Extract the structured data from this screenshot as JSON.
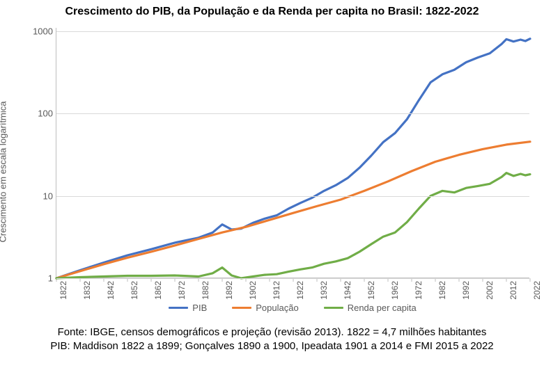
{
  "title": "Crescimento do PIB, da População e da Renda per capita no Brasil: 1822-2022",
  "ylabel": "Crescimento em escala logarítmica",
  "footer_line1": "Fonte: IBGE, censos demográficos e projeção (revisão 2013). 1822 = 4,7 milhões habitantes",
  "footer_line2": "PIB: Maddison 1822 a 1899; Gonçalves 1890 a 1900, Ipeadata 1901 a 2014 e FMI 2015 a 2022",
  "chart": {
    "type": "line",
    "xlim": [
      1822,
      2022
    ],
    "ylim": [
      1,
      1100
    ],
    "yscale": "log",
    "yticks": [
      1,
      10,
      100,
      1000
    ],
    "xticks": [
      1822,
      1832,
      1842,
      1852,
      1862,
      1872,
      1882,
      1892,
      1902,
      1912,
      1922,
      1932,
      1942,
      1952,
      1962,
      1972,
      1982,
      1992,
      2002,
      2012,
      2022
    ],
    "background_color": "#ffffff",
    "grid_color": "#d9d9d9",
    "axis_color": "#bfbfbf",
    "tick_label_color": "#595959",
    "tick_fontsize": 13,
    "title_fontsize": 16,
    "line_width": 3.2,
    "legend_position": "bottom",
    "series": [
      {
        "name": "PIB",
        "color": "#4472c4",
        "years": [
          1822,
          1832,
          1842,
          1852,
          1862,
          1872,
          1882,
          1888,
          1892,
          1896,
          1900,
          1905,
          1910,
          1915,
          1920,
          1925,
          1930,
          1935,
          1940,
          1945,
          1950,
          1955,
          1960,
          1965,
          1970,
          1975,
          1980,
          1985,
          1990,
          1995,
          2000,
          2005,
          2010,
          2012,
          2015,
          2018,
          2020,
          2022
        ],
        "values": [
          1.0,
          1.25,
          1.55,
          1.9,
          2.25,
          2.7,
          3.1,
          3.6,
          4.5,
          3.9,
          4.0,
          4.7,
          5.3,
          5.8,
          7.0,
          8.2,
          9.5,
          11.5,
          13.5,
          16.5,
          22,
          31,
          45,
          58,
          85,
          145,
          240,
          300,
          340,
          420,
          480,
          540,
          700,
          800,
          750,
          790,
          760,
          810
        ]
      },
      {
        "name": "População",
        "color": "#ed7d31",
        "years": [
          1822,
          1832,
          1842,
          1852,
          1862,
          1872,
          1882,
          1892,
          1902,
          1912,
          1922,
          1932,
          1942,
          1952,
          1962,
          1972,
          1982,
          1992,
          2002,
          2012,
          2022
        ],
        "values": [
          1.0,
          1.22,
          1.48,
          1.78,
          2.1,
          2.5,
          3.0,
          3.6,
          4.2,
          5.1,
          6.2,
          7.5,
          9.0,
          11.5,
          15.0,
          20.0,
          26.0,
          31.5,
          37.0,
          42.0,
          45.5
        ]
      },
      {
        "name": "Renda per capita",
        "color": "#70ad47",
        "years": [
          1822,
          1832,
          1842,
          1852,
          1862,
          1872,
          1882,
          1888,
          1892,
          1896,
          1900,
          1905,
          1910,
          1915,
          1920,
          1925,
          1930,
          1935,
          1940,
          1945,
          1950,
          1955,
          1960,
          1965,
          1970,
          1975,
          1980,
          1985,
          1990,
          1995,
          2000,
          2005,
          2010,
          2012,
          2015,
          2018,
          2020,
          2022
        ],
        "values": [
          1.0,
          1.03,
          1.05,
          1.07,
          1.07,
          1.08,
          1.05,
          1.15,
          1.35,
          1.08,
          1.0,
          1.05,
          1.1,
          1.12,
          1.2,
          1.28,
          1.35,
          1.5,
          1.6,
          1.75,
          2.1,
          2.6,
          3.2,
          3.6,
          4.8,
          7.0,
          10.0,
          11.5,
          11.0,
          12.5,
          13.2,
          14.0,
          17.0,
          19.0,
          17.5,
          18.5,
          17.8,
          18.3
        ]
      }
    ]
  },
  "legend": {
    "items": [
      {
        "label": "PIB",
        "color": "#4472c4"
      },
      {
        "label": "População",
        "color": "#ed7d31"
      },
      {
        "label": "Renda per capita",
        "color": "#70ad47"
      }
    ]
  }
}
